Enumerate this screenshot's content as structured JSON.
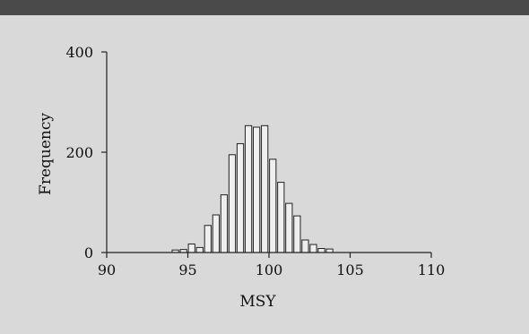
{
  "chart_data": {
    "type": "bar",
    "title": "",
    "xlabel": "MSY",
    "ylabel": "Frequency",
    "xlim": [
      90,
      110
    ],
    "ylim": [
      0,
      400
    ],
    "xticks": [
      90,
      95,
      100,
      105,
      110
    ],
    "yticks": [
      0,
      200,
      400
    ],
    "bin_width": 0.5,
    "bins": [
      {
        "x": 94.0,
        "count": 5
      },
      {
        "x": 94.5,
        "count": 6
      },
      {
        "x": 95.0,
        "count": 17
      },
      {
        "x": 95.5,
        "count": 10
      },
      {
        "x": 96.0,
        "count": 54
      },
      {
        "x": 96.5,
        "count": 75
      },
      {
        "x": 97.0,
        "count": 115
      },
      {
        "x": 97.5,
        "count": 195
      },
      {
        "x": 98.0,
        "count": 217
      },
      {
        "x": 98.5,
        "count": 253
      },
      {
        "x": 99.0,
        "count": 250
      },
      {
        "x": 99.5,
        "count": 253
      },
      {
        "x": 100.0,
        "count": 186
      },
      {
        "x": 100.5,
        "count": 140
      },
      {
        "x": 101.0,
        "count": 98
      },
      {
        "x": 101.5,
        "count": 73
      },
      {
        "x": 102.0,
        "count": 25
      },
      {
        "x": 102.5,
        "count": 16
      },
      {
        "x": 103.0,
        "count": 8
      },
      {
        "x": 103.5,
        "count": 7
      }
    ],
    "grid": false,
    "legend": "none"
  },
  "colors": {
    "background": "#d9d9d9",
    "header_bar": "#4a4a4a",
    "bar_fill": "#efefef",
    "bar_stroke": "#222222",
    "axis": "#222222"
  }
}
